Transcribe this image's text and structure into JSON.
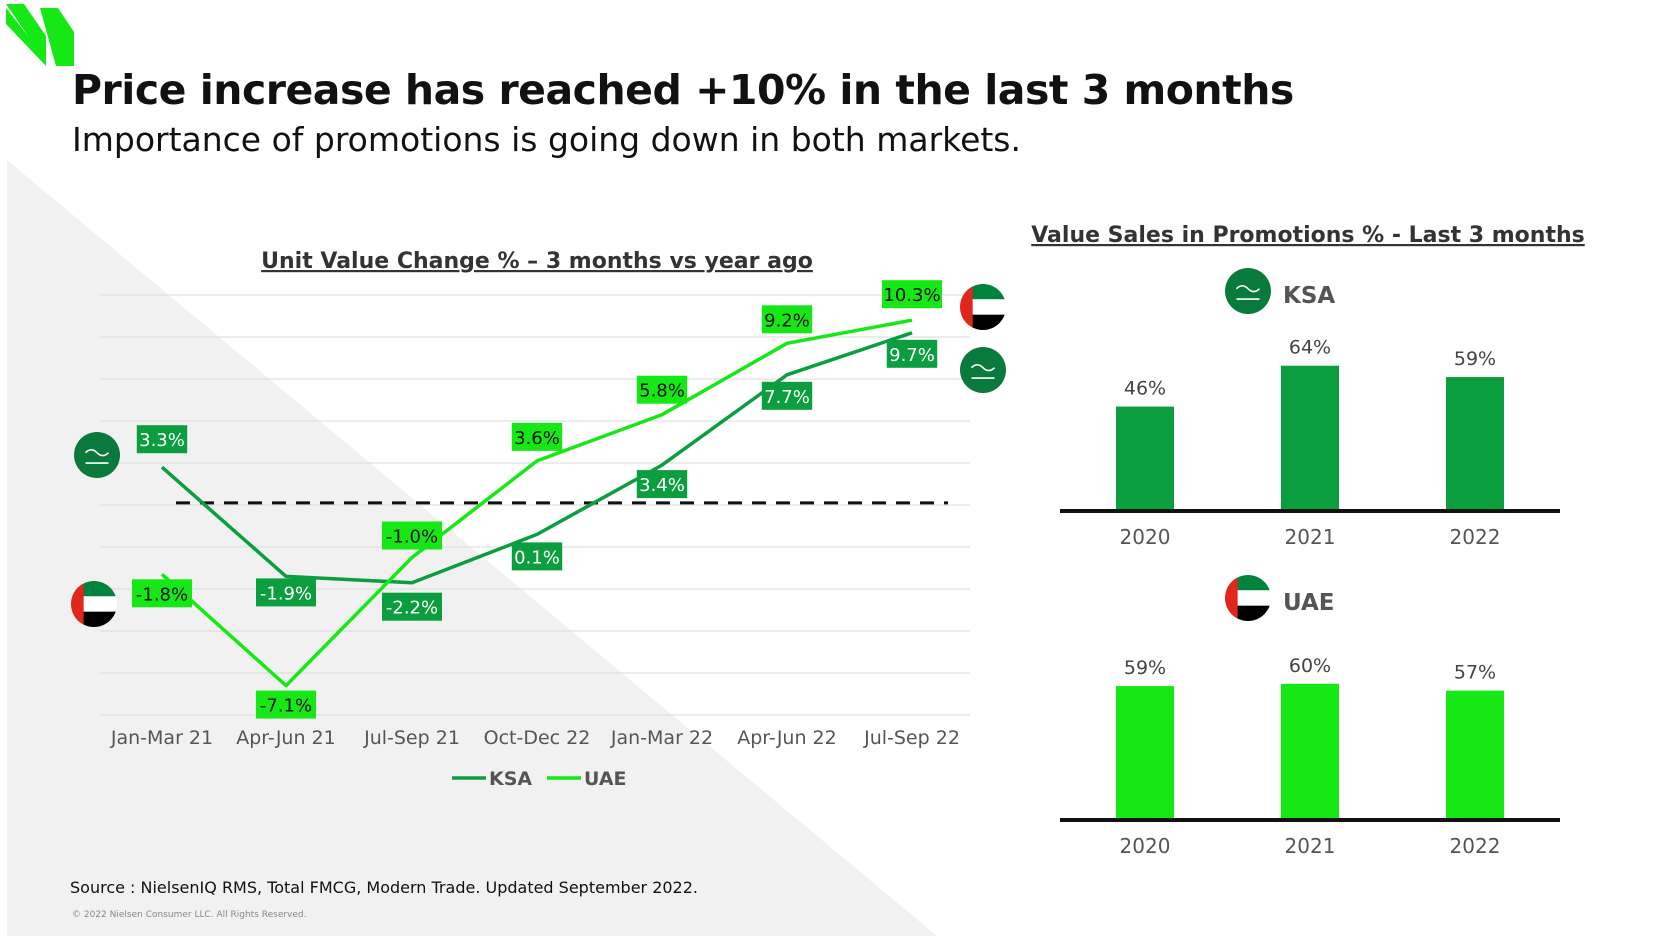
{
  "slide": {
    "title": "Price increase has reached +10% in the last 3 months",
    "subtitle": "Importance of promotions is going down in both markets.",
    "source": "Source : NielsenIQ RMS, Total FMCG, Modern Trade. Updated September 2022.",
    "copyright": "© 2022 Nielsen Consumer LLC. All Rights Reserved."
  },
  "colors": {
    "ksa": "#0a9e3f",
    "uae": "#16e816",
    "grid": "#d9d9d9",
    "label_text": "#111111",
    "tick_text": "#555555"
  },
  "chart_data": [
    {
      "type": "line",
      "title": "Unit Value Change % – 3 months vs year ago",
      "categories": [
        "Jan-Mar 21",
        "Apr-Jun 21",
        "Jul-Sep 21",
        "Oct-Dec 22",
        "Jan-Mar 22",
        "Apr-Jun 22",
        "Jul-Sep 22"
      ],
      "series": [
        {
          "name": "KSA",
          "values": [
            3.3,
            -1.9,
            -2.2,
            0.1,
            3.4,
            7.7,
            9.7
          ],
          "labels": [
            "3.3%",
            "-1.9%",
            "-2.2%",
            "0.1%",
            "3.4%",
            "7.7%",
            "9.7%"
          ]
        },
        {
          "name": "UAE",
          "values": [
            -1.8,
            -7.1,
            -1.0,
            3.6,
            5.8,
            9.2,
            10.3
          ],
          "labels": [
            "-1.8%",
            "-7.1%",
            "-1.0%",
            "3.6%",
            "5.8%",
            "9.2%",
            "10.3%"
          ]
        }
      ],
      "reference_line": 1.6,
      "ylim": [
        -8.5,
        11.5
      ],
      "grid": true,
      "legend": "bottom"
    },
    {
      "type": "bar",
      "title": "Value Sales in Promotions % - Last 3 months",
      "panel_title": "KSA",
      "categories": [
        "2020",
        "2021",
        "2022"
      ],
      "values": [
        46,
        64,
        59
      ],
      "labels": [
        "46%",
        "64%",
        "59%"
      ]
    },
    {
      "type": "bar",
      "title": "Value Sales in Promotions % - Last 3 months",
      "panel_title": "UAE",
      "categories": [
        "2020",
        "2021",
        "2022"
      ],
      "values": [
        59,
        60,
        57
      ],
      "labels": [
        "59%",
        "60%",
        "57%"
      ]
    }
  ]
}
